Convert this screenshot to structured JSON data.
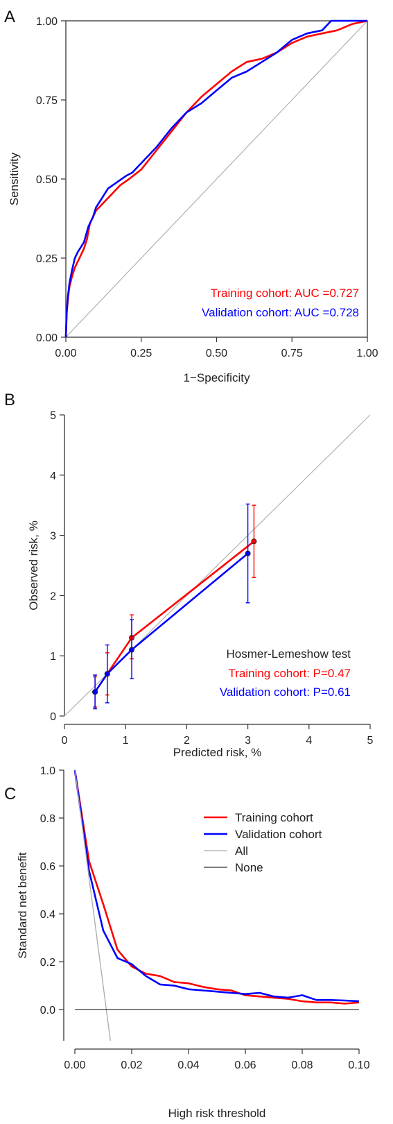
{
  "chart_data": [
    {
      "panel_letter": "A",
      "type": "line",
      "xlabel": "1−Specificity",
      "ylabel": "Sensitivity",
      "xlim": [
        0,
        1
      ],
      "ylim": [
        0,
        1
      ],
      "xticks": [
        "0.00",
        "0.25",
        "0.50",
        "0.75",
        "1.00"
      ],
      "yticks": [
        "0.00",
        "0.25",
        "0.50",
        "0.75",
        "1.00"
      ],
      "reference_line": "diagonal",
      "annotations": [
        {
          "text": "Training cohort: AUC =0.727",
          "color": "#ff0000"
        },
        {
          "text": "Validation cohort: AUC =0.728",
          "color": "#0000ff"
        }
      ],
      "series": [
        {
          "color": "#ff0000",
          "x": [
            0,
            0.003,
            0.008,
            0.012,
            0.02,
            0.03,
            0.045,
            0.06,
            0.07,
            0.08,
            0.09,
            0.1,
            0.12,
            0.15,
            0.18,
            0.21,
            0.25,
            0.3,
            0.35,
            0.4,
            0.45,
            0.5,
            0.55,
            0.6,
            0.65,
            0.7,
            0.75,
            0.8,
            0.85,
            0.9,
            0.95,
            1.0
          ],
          "y": [
            0,
            0.08,
            0.13,
            0.16,
            0.19,
            0.22,
            0.25,
            0.28,
            0.31,
            0.36,
            0.38,
            0.4,
            0.42,
            0.45,
            0.48,
            0.5,
            0.53,
            0.59,
            0.65,
            0.71,
            0.76,
            0.8,
            0.84,
            0.87,
            0.88,
            0.9,
            0.93,
            0.95,
            0.96,
            0.97,
            0.99,
            1.0
          ]
        },
        {
          "color": "#0000ff",
          "x": [
            0,
            0.003,
            0.007,
            0.012,
            0.02,
            0.03,
            0.04,
            0.06,
            0.075,
            0.09,
            0.1,
            0.12,
            0.14,
            0.17,
            0.2,
            0.22,
            0.26,
            0.3,
            0.35,
            0.4,
            0.45,
            0.5,
            0.55,
            0.6,
            0.65,
            0.7,
            0.75,
            0.8,
            0.85,
            0.88,
            0.93,
            1.0
          ],
          "y": [
            0,
            0.08,
            0.13,
            0.17,
            0.21,
            0.25,
            0.27,
            0.3,
            0.35,
            0.38,
            0.41,
            0.44,
            0.47,
            0.49,
            0.51,
            0.52,
            0.56,
            0.6,
            0.66,
            0.71,
            0.74,
            0.78,
            0.82,
            0.84,
            0.87,
            0.9,
            0.94,
            0.96,
            0.97,
            1.0,
            1.0,
            1.0
          ]
        }
      ]
    },
    {
      "panel_letter": "B",
      "type": "line",
      "xlabel": "Predicted risk, %",
      "ylabel": "Observed risk, %",
      "xlim": [
        0,
        5
      ],
      "ylim": [
        0,
        5
      ],
      "xticks": [
        "0",
        "1",
        "2",
        "3",
        "4",
        "5"
      ],
      "yticks": [
        "0",
        "1",
        "2",
        "3",
        "4",
        "5"
      ],
      "reference_line": "diagonal",
      "annotations": [
        {
          "text": "Hosmer-Lemeshow test",
          "color": "#222222"
        },
        {
          "text": "Training cohort: P=0.47",
          "color": "#ff0000"
        },
        {
          "text": "Validation cohort: P=0.61",
          "color": "#0000ff"
        }
      ],
      "series": [
        {
          "color": "#ff0000",
          "x": [
            0.5,
            0.7,
            1.1,
            3.1
          ],
          "y": [
            0.4,
            0.7,
            1.3,
            2.9
          ],
          "err_low": [
            0.15,
            0.35,
            0.95,
            2.3
          ],
          "err_high": [
            0.65,
            1.05,
            1.68,
            3.5
          ]
        },
        {
          "color": "#0000ff",
          "x": [
            0.5,
            0.7,
            1.1,
            3.0
          ],
          "y": [
            0.4,
            0.7,
            1.1,
            2.7
          ],
          "err_low": [
            0.12,
            0.22,
            0.62,
            1.88
          ],
          "err_high": [
            0.68,
            1.18,
            1.6,
            3.52
          ]
        }
      ]
    },
    {
      "panel_letter": "C",
      "type": "line",
      "xlabel": "High risk threshold",
      "ylabel": "Standard net benefit",
      "xlim": [
        0,
        0.1
      ],
      "ylim": [
        -0.13,
        1.0
      ],
      "xticks": [
        "0.00",
        "0.02",
        "0.04",
        "0.06",
        "0.08",
        "0.10"
      ],
      "yticks": [
        "0.0",
        "0.2",
        "0.4",
        "0.6",
        "0.8",
        "1.0"
      ],
      "legend_placement": "top-right",
      "series": [
        {
          "name": "Training cohort",
          "color": "#ff0000",
          "x": [
            0,
            0.005,
            0.01,
            0.015,
            0.02,
            0.025,
            0.03,
            0.035,
            0.04,
            0.045,
            0.05,
            0.055,
            0.06,
            0.065,
            0.07,
            0.075,
            0.08,
            0.085,
            0.09,
            0.095,
            0.1
          ],
          "y": [
            1.0,
            0.62,
            0.44,
            0.25,
            0.18,
            0.15,
            0.14,
            0.115,
            0.11,
            0.095,
            0.085,
            0.08,
            0.06,
            0.055,
            0.05,
            0.045,
            0.035,
            0.03,
            0.03,
            0.025,
            0.03
          ]
        },
        {
          "name": "Validation cohort",
          "color": "#0000ff",
          "x": [
            0,
            0.005,
            0.01,
            0.015,
            0.02,
            0.025,
            0.03,
            0.035,
            0.04,
            0.045,
            0.05,
            0.055,
            0.06,
            0.065,
            0.07,
            0.075,
            0.08,
            0.085,
            0.09,
            0.095,
            0.1
          ],
          "y": [
            1.0,
            0.58,
            0.33,
            0.215,
            0.19,
            0.14,
            0.105,
            0.1,
            0.085,
            0.08,
            0.075,
            0.07,
            0.065,
            0.07,
            0.055,
            0.05,
            0.06,
            0.04,
            0.04,
            0.038,
            0.035
          ]
        },
        {
          "name": "All",
          "color": "#aaaaaa",
          "x": [
            0,
            0.0125
          ],
          "y": [
            1.0,
            -0.13
          ]
        },
        {
          "name": "None",
          "color": "#333333",
          "x": [
            0,
            0.1
          ],
          "y": [
            0,
            0
          ]
        }
      ]
    }
  ]
}
